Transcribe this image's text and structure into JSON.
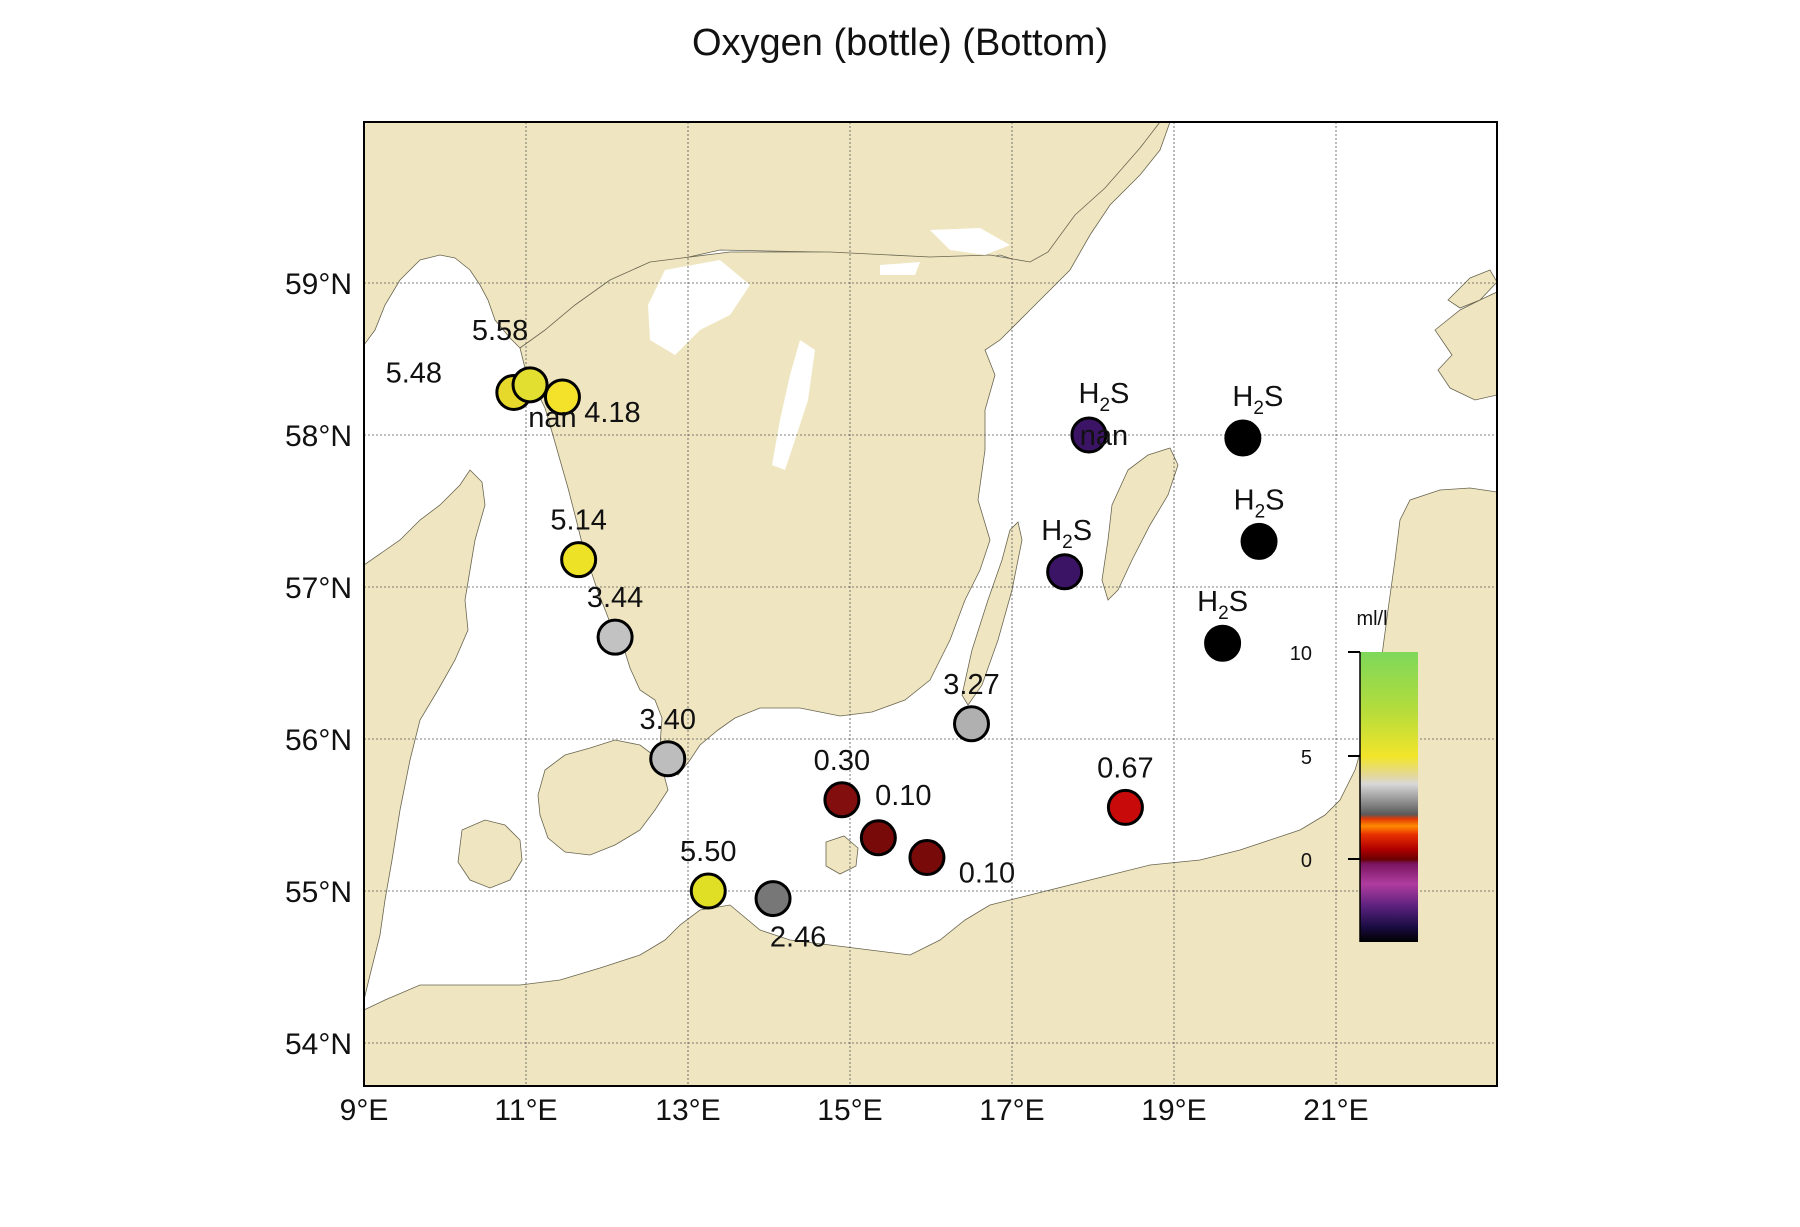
{
  "title": "Oxygen (bottle) (Bottom)",
  "colors": {
    "land": "#efe6c1",
    "sea": "#ffffff",
    "frame": "#000000"
  },
  "lat_ticks": [
    {
      "lat": 59,
      "label": "59°N"
    },
    {
      "lat": 58,
      "label": "58°N"
    },
    {
      "lat": 57,
      "label": "57°N"
    },
    {
      "lat": 56,
      "label": "56°N"
    },
    {
      "lat": 55,
      "label": "55°N"
    },
    {
      "lat": 54,
      "label": "54°N"
    }
  ],
  "lon_ticks": [
    {
      "lon": 9,
      "label": "9°E"
    },
    {
      "lon": 11,
      "label": "11°E"
    },
    {
      "lon": 13,
      "label": "13°E"
    },
    {
      "lon": 15,
      "label": "15°E"
    },
    {
      "lon": 17,
      "label": "17°E"
    },
    {
      "lon": 19,
      "label": "19°E"
    },
    {
      "lon": 21,
      "label": "21°E"
    }
  ],
  "colorbar": {
    "unit": "ml/l",
    "ticks": [
      "10",
      "5",
      "0"
    ]
  },
  "chart_data": {
    "type": "scatter",
    "title": "Oxygen (bottle) (Bottom)",
    "xlabel": "",
    "ylabel": "",
    "unit": "ml/l",
    "colorbar_range": [
      -4,
      10
    ],
    "lon_range": [
      9,
      23
    ],
    "lat_range": [
      53.5,
      60
    ],
    "stations": [
      {
        "lon": 10.85,
        "lat": 58.28,
        "label": "5.48",
        "color": "#e6d92c"
      },
      {
        "lon": 11.05,
        "lat": 58.33,
        "label": "5.58",
        "color": "#e2df30"
      },
      {
        "lon": 11.45,
        "lat": 58.25,
        "label": "4.18",
        "color": "#f3e229"
      },
      {
        "lon": 11.45,
        "lat": 58.25,
        "label": "nan",
        "color": null
      },
      {
        "lon": 11.65,
        "lat": 57.18,
        "label": "5.14",
        "color": "#ede225"
      },
      {
        "lon": 12.1,
        "lat": 56.67,
        "label": "3.44",
        "color": "#c2c2c2"
      },
      {
        "lon": 12.75,
        "lat": 55.87,
        "label": "3.40",
        "color": "#bdbdbd"
      },
      {
        "lon": 13.25,
        "lat": 55.0,
        "label": "5.50",
        "color": "#e1df25"
      },
      {
        "lon": 14.05,
        "lat": 54.95,
        "label": "2.46",
        "color": "#777777"
      },
      {
        "lon": 14.9,
        "lat": 55.6,
        "label": "0.30",
        "color": "#820e0e"
      },
      {
        "lon": 15.35,
        "lat": 55.35,
        "label": "0.10",
        "color": "#780a0a"
      },
      {
        "lon": 15.95,
        "lat": 55.22,
        "label": "0.10",
        "color": "#780a0a"
      },
      {
        "lon": 16.5,
        "lat": 56.1,
        "label": "3.27",
        "color": "#b0b0b0"
      },
      {
        "lon": 18.4,
        "lat": 55.55,
        "label": "0.67",
        "color": "#c80a0a"
      },
      {
        "lon": 17.65,
        "lat": 57.1,
        "label": "H2S",
        "color": "#3c1466"
      },
      {
        "lon": 17.95,
        "lat": 58.0,
        "label": "H2S",
        "color": "#3c1466"
      },
      {
        "lon": 17.95,
        "lat": 58.0,
        "label": "nan",
        "color": null
      },
      {
        "lon": 19.85,
        "lat": 57.98,
        "label": "H2S",
        "color": "#000000"
      },
      {
        "lon": 20.05,
        "lat": 57.3,
        "label": "H2S",
        "color": "#000000"
      },
      {
        "lon": 19.6,
        "lat": 56.63,
        "label": "H2S",
        "color": "#000000"
      }
    ]
  }
}
